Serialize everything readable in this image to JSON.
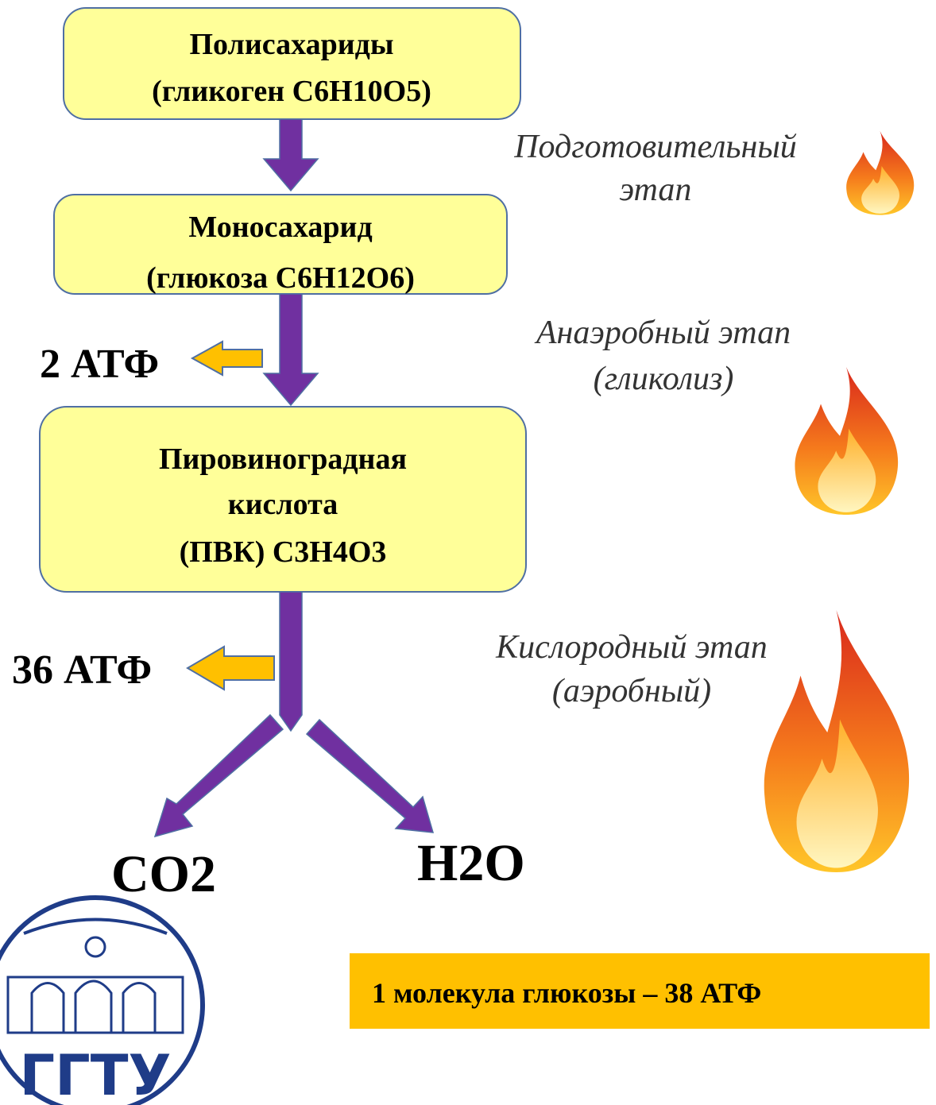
{
  "boxes": [
    {
      "lines": [
        "Полисахариды",
        "(гликоген C6H10O5)"
      ]
    },
    {
      "lines": [
        "Моносахарид",
        "(глюкоза C6H12O6)"
      ]
    },
    {
      "lines": [
        "Пировиноградная",
        "кислота",
        "(ПВК) C3H4O3"
      ]
    }
  ],
  "atp": [
    "2 АТФ",
    "36 АТФ"
  ],
  "stages": [
    {
      "lines": [
        "Подготовительный",
        "этап"
      ]
    },
    {
      "lines": [
        "Анаэробный этап",
        "(гликолиз)"
      ]
    },
    {
      "lines": [
        "Кислородный этап",
        "(аэробный)"
      ]
    }
  ],
  "products": [
    "CO2",
    "H2O"
  ],
  "logo": {
    "label": "ГГТУ"
  },
  "summary": "1 молекула глюкозы – 38 АТФ"
}
